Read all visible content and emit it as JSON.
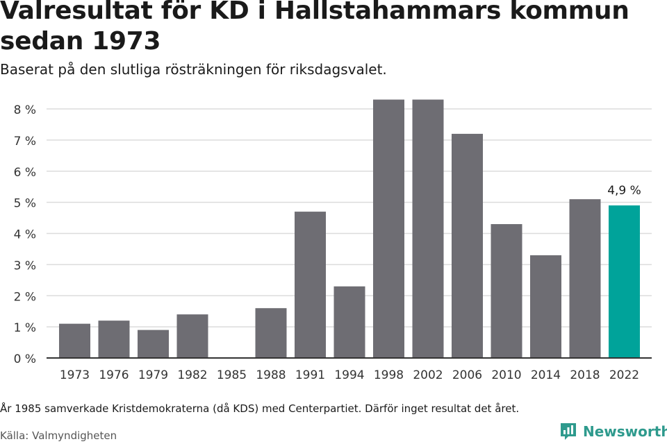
{
  "header": {
    "title": "Valresultat för KD i Hallstahammars kommun sedan 1973",
    "subtitle": "Baserat på den slutliga rösträkningen för riksdagsvalet."
  },
  "chart_data": {
    "type": "bar",
    "categories": [
      "1973",
      "1976",
      "1979",
      "1982",
      "1985",
      "1988",
      "1991",
      "1994",
      "1998",
      "2002",
      "2006",
      "2010",
      "2014",
      "2018",
      "2022"
    ],
    "values": [
      1.1,
      1.2,
      0.9,
      1.4,
      null,
      1.6,
      4.7,
      2.3,
      8.3,
      8.3,
      7.2,
      4.3,
      3.3,
      5.1,
      4.9
    ],
    "ylim": [
      0,
      8
    ],
    "yticks": [
      0,
      1,
      2,
      3,
      4,
      5,
      6,
      7,
      8
    ],
    "ytick_labels": [
      "0 %",
      "1 %",
      "2 %",
      "3 %",
      "4 %",
      "5 %",
      "6 %",
      "7 %",
      "8 %"
    ],
    "grid": true,
    "highlight_index": 14,
    "highlight_label": "4,9 %",
    "colors": {
      "bar": "#6e6d73",
      "highlight": "#00a39a",
      "grid": "#dcdcdc",
      "axis": "#333333"
    }
  },
  "footer": {
    "note": "År 1985 samverkade Kristdemokraterna (då KDS) med Centerpartiet. Därför inget resultat det året.",
    "source": "Källa: Valmyndigheten",
    "brand": "Newsworthy",
    "brand_icon": "bar-chart-speech-bubble-icon",
    "brand_color": "#2e9a8d"
  }
}
